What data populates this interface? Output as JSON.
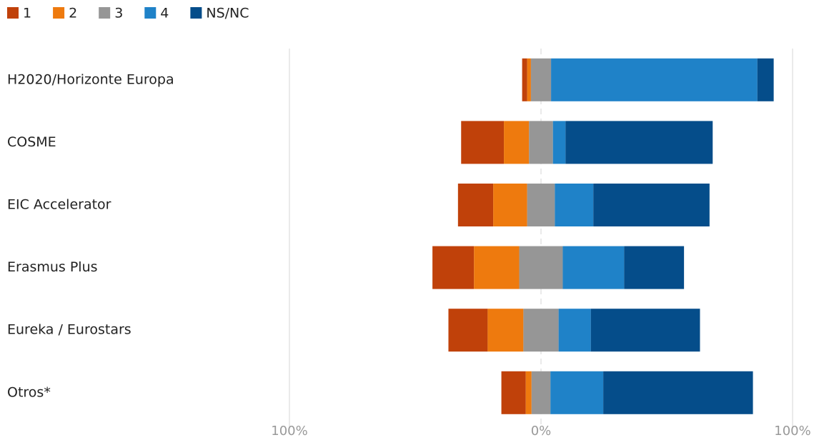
{
  "chart_data": {
    "type": "bar",
    "orientation": "horizontal",
    "stacking": "diverging",
    "categories": [
      "H2020/Horizonte Europa",
      "COSME",
      "EIC Accelerator",
      "Erasmus Plus",
      "Eureka / Eurostars",
      "Otros*"
    ],
    "series": [
      {
        "name": "1",
        "color": "#c0410a",
        "values": [
          2,
          17,
          14,
          16.5,
          15.6,
          9.7
        ]
      },
      {
        "name": "2",
        "color": "#ee7a0e",
        "values": [
          1.5,
          10,
          13.5,
          18,
          14.2,
          2.3
        ]
      },
      {
        "name": "3",
        "color": "#969696",
        "values": [
          8,
          9.5,
          11,
          17.3,
          14,
          7.5
        ]
      },
      {
        "name": "4",
        "color": "#1f82c8",
        "values": [
          82,
          5,
          15.3,
          24.4,
          12.8,
          21
        ]
      },
      {
        "name": "NS/NC",
        "color": "#054d8a",
        "values": [
          6.5,
          58.5,
          46.2,
          23.8,
          43.4,
          59.5
        ]
      }
    ],
    "xlim": [
      -100,
      100
    ],
    "xticks": [
      {
        "value": -100,
        "label": "100%"
      },
      {
        "value": 0,
        "label": "0%"
      },
      {
        "value": 100,
        "label": "100%"
      }
    ],
    "grid": true,
    "legend": "top-left"
  }
}
